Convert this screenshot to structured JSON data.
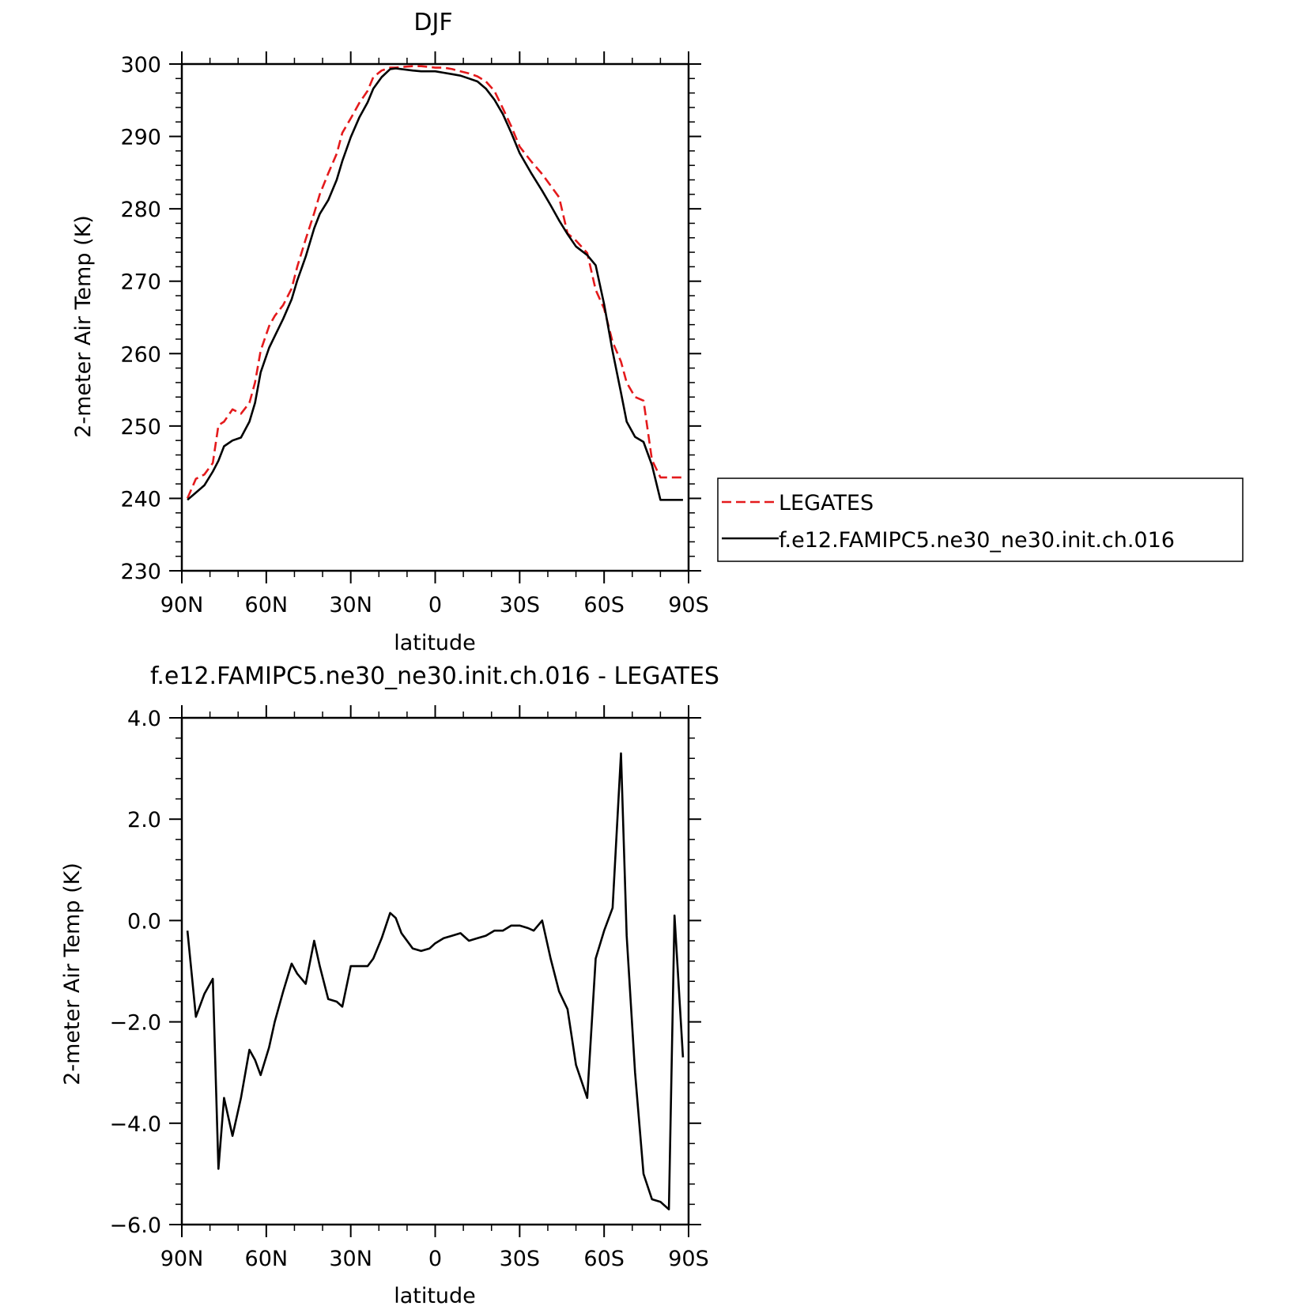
{
  "chart_data": [
    {
      "type": "line",
      "title": "DJF",
      "xlabel": "latitude",
      "ylabel": "2-meter Air Temp (K)",
      "xlim": [
        90,
        -90
      ],
      "ylim": [
        230,
        300
      ],
      "x_ticks": [
        90,
        60,
        30,
        0,
        -30,
        -60,
        -90
      ],
      "x_tick_labels": [
        "90N",
        "60N",
        "30N",
        "0",
        "30S",
        "60S",
        "90S"
      ],
      "y_ticks": [
        230,
        240,
        250,
        260,
        270,
        280,
        290,
        300
      ],
      "y_tick_labels": [
        "230",
        "240",
        "250",
        "260",
        "270",
        "280",
        "290",
        "300"
      ],
      "legend": {
        "position": "right"
      },
      "series": [
        {
          "name": "LEGATES",
          "color": "#e41a1c",
          "dash": true,
          "x": [
            88,
            85,
            82,
            79,
            77,
            75,
            72,
            69,
            66,
            64,
            62,
            59,
            57,
            54,
            51,
            49,
            46,
            43,
            41,
            38,
            35,
            33,
            30,
            27,
            24,
            22,
            19,
            16,
            14,
            12,
            8,
            5,
            2,
            0,
            -3,
            -6,
            -9,
            -12,
            -15,
            -18,
            -21,
            -24,
            -27,
            -30,
            -34,
            -38,
            -41,
            -44,
            -47,
            -50,
            -54,
            -57,
            -60,
            -63,
            -66,
            -68,
            -71,
            -74,
            -77,
            -80,
            -83,
            -85,
            -88
          ],
          "y": [
            240.0,
            242.7,
            243.3,
            244.9,
            250.1,
            250.6,
            252.3,
            251.7,
            253.2,
            256.0,
            260.4,
            263.8,
            265.2,
            266.7,
            269.0,
            272.0,
            275.8,
            279.4,
            282.0,
            284.9,
            287.6,
            290.5,
            292.5,
            294.6,
            296.3,
            298.2,
            299.1,
            299.5,
            299.5,
            299.6,
            299.7,
            299.7,
            299.6,
            299.5,
            299.5,
            299.3,
            299.0,
            298.7,
            298.3,
            297.6,
            296.3,
            293.9,
            291.4,
            288.6,
            286.6,
            284.8,
            283.2,
            281.6,
            276.6,
            275.6,
            273.9,
            268.8,
            266.2,
            261.6,
            258.9,
            256.0,
            254.0,
            253.5,
            245.3,
            242.9,
            242.9,
            242.9,
            242.9
          ],
          "values_note": ""
        },
        {
          "name": "f.e12.FAMIPC5.ne30_ne30.init.ch.016",
          "color": "#000000",
          "dash": false,
          "x": [
            88,
            85,
            82,
            79,
            77,
            75,
            72,
            69,
            66,
            64,
            62,
            59,
            57,
            54,
            51,
            49,
            46,
            43,
            41,
            38,
            35,
            33,
            30,
            27,
            24,
            22,
            19,
            16,
            14,
            12,
            8,
            5,
            2,
            0,
            -3,
            -6,
            -9,
            -12,
            -15,
            -18,
            -21,
            -24,
            -27,
            -30,
            -34,
            -38,
            -41,
            -44,
            -47,
            -50,
            -54,
            -57,
            -60,
            -63,
            -66,
            -68,
            -71,
            -74,
            -77,
            -80,
            -83,
            -85,
            -88
          ],
          "y": [
            239.8,
            240.8,
            241.8,
            243.7,
            245.2,
            247.2,
            248.0,
            248.4,
            250.6,
            253.2,
            257.4,
            260.8,
            262.4,
            264.8,
            267.5,
            270.1,
            273.4,
            277.3,
            279.3,
            281.2,
            284.0,
            286.6,
            289.9,
            292.6,
            294.7,
            296.6,
            298.2,
            299.3,
            299.4,
            299.3,
            299.1,
            299.0,
            299.0,
            299.0,
            298.8,
            298.6,
            298.4,
            298.0,
            297.6,
            296.6,
            295.1,
            293.1,
            290.5,
            287.7,
            285.0,
            282.5,
            280.5,
            278.4,
            276.5,
            274.8,
            273.6,
            272.2,
            266.8,
            260.3,
            254.6,
            250.6,
            248.5,
            247.8,
            244.6,
            239.8,
            239.8,
            239.8,
            239.8
          ]
        }
      ]
    },
    {
      "type": "line",
      "title": "f.e12.FAMIPC5.ne30_ne30.init.ch.016 - LEGATES",
      "xlabel": "latitude",
      "ylabel": "2-meter Air Temp (K)",
      "xlim": [
        90,
        -90
      ],
      "ylim": [
        -6.0,
        4.0
      ],
      "x_ticks": [
        90,
        60,
        30,
        0,
        -30,
        -60,
        -90
      ],
      "x_tick_labels": [
        "90N",
        "60N",
        "30N",
        "0",
        "30S",
        "60S",
        "90S"
      ],
      "y_ticks": [
        -6.0,
        -4.0,
        -2.0,
        0.0,
        2.0,
        4.0
      ],
      "y_tick_labels": [
        "−6.0",
        "−4.0",
        "−2.0",
        "0.0",
        "2.0",
        "4.0"
      ],
      "series": [
        {
          "color": "#000000",
          "dash": false,
          "x": [
            88,
            85,
            82,
            79,
            77,
            75,
            72,
            69,
            66,
            64,
            62,
            59,
            57,
            54,
            51,
            49,
            46,
            43,
            41,
            38,
            35,
            33,
            30,
            27,
            24,
            22,
            19,
            16,
            14,
            12,
            8,
            5,
            2,
            0,
            -3,
            -6,
            -9,
            -12,
            -15,
            -18,
            -21,
            -24,
            -27,
            -30,
            -33,
            -35,
            -38,
            -41,
            -44,
            -47,
            -50,
            -54,
            -57,
            -60,
            -63,
            -66,
            -68,
            -71,
            -74,
            -77,
            -80,
            -83,
            -85,
            -88
          ],
          "y": [
            -0.2,
            -1.9,
            -1.45,
            -1.15,
            -4.9,
            -3.5,
            -4.25,
            -3.5,
            -2.55,
            -2.75,
            -3.05,
            -2.5,
            -2.0,
            -1.4,
            -0.85,
            -1.05,
            -1.25,
            -0.4,
            -0.9,
            -1.55,
            -1.6,
            -1.7,
            -0.9,
            -0.9,
            -0.9,
            -0.75,
            -0.35,
            0.15,
            0.05,
            -0.25,
            -0.55,
            -0.6,
            -0.55,
            -0.45,
            -0.35,
            -0.3,
            -0.25,
            -0.4,
            -0.35,
            -0.3,
            -0.2,
            -0.2,
            -0.1,
            -0.1,
            -0.15,
            -0.2,
            0.0,
            -0.75,
            -1.4,
            -1.75,
            -2.85,
            -3.5,
            -0.75,
            -0.2,
            0.25,
            3.3,
            -0.3,
            -3.0,
            -5.0,
            -5.5,
            -5.55,
            -5.7,
            0.1,
            -2.7
          ]
        }
      ]
    }
  ]
}
